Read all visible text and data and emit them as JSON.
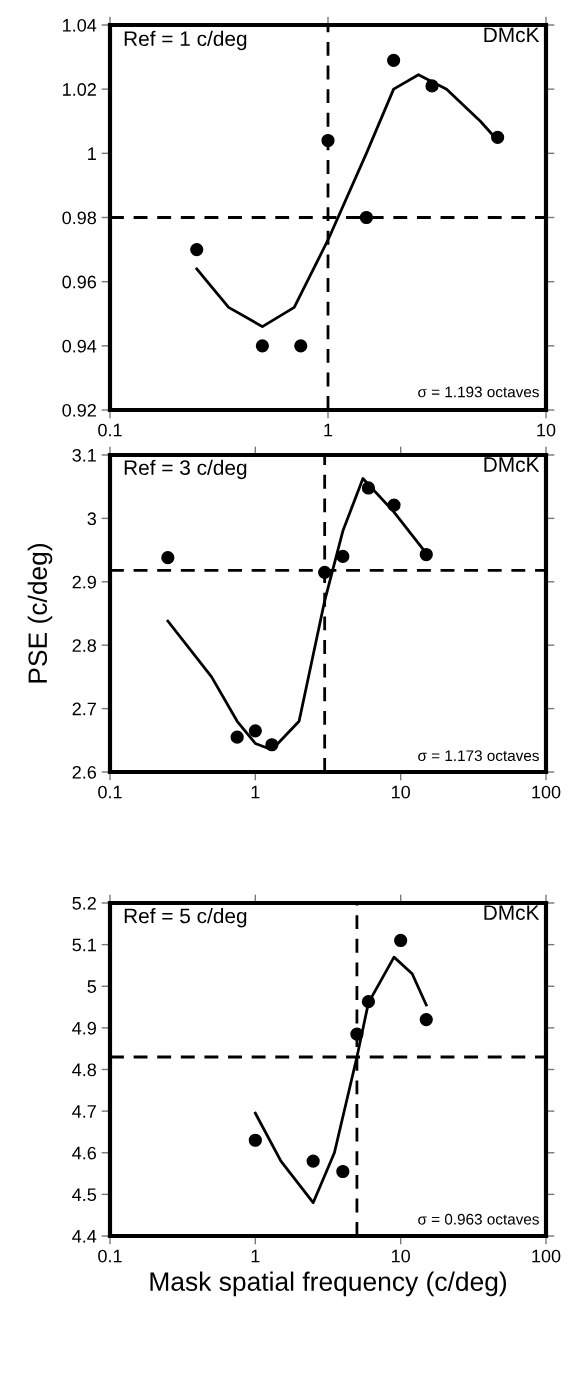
{
  "chart_data": [
    {
      "type": "scatter",
      "annotations": [
        "Ref = 1 c/deg",
        "DMcK",
        "σ = 1.193 octaves"
      ],
      "log": "x",
      "xlim": [
        0.1,
        10
      ],
      "xticks": [
        0.1,
        1,
        10
      ],
      "ylim": [
        0.92,
        1.04
      ],
      "yticks": [
        0.92,
        0.94,
        0.96,
        0.98,
        1,
        1.02,
        1.04
      ],
      "grid": false,
      "legend": false,
      "marker": "circle",
      "ref_lines": [
        {
          "axis": "x",
          "value": 1,
          "color": "#000000",
          "line_style": "dashed"
        },
        {
          "axis": "y",
          "value": 0.98,
          "color": "#000000",
          "line_style": "dashed"
        }
      ],
      "series": [
        {
          "color": "#000000",
          "x": [
            0.25,
            0.5,
            0.75,
            1,
            1.5,
            2,
            3,
            6
          ],
          "values": [
            0.97,
            0.94,
            0.94,
            1.004,
            0.98,
            1.029,
            1.021,
            1.005
          ]
        },
        {
          "type": "line",
          "color": "#000000",
          "line_style": "solid",
          "marker": "none",
          "x": [
            0.25,
            0.35,
            0.5,
            0.7,
            1,
            1.5,
            2,
            2.6,
            3.5,
            5,
            6
          ],
          "values": [
            0.964,
            0.952,
            0.946,
            0.952,
            0.973,
            1.0,
            1.02,
            1.0245,
            1.02,
            1.01,
            1.004
          ]
        }
      ]
    },
    {
      "type": "scatter",
      "annotations": [
        "Ref = 3 c/deg",
        "DMcK",
        "σ = 1.173 octaves"
      ],
      "ylabel": "PSE (c/deg)",
      "log": "x",
      "xlim": [
        0.1,
        100
      ],
      "xticks": [
        0.1,
        1,
        10,
        100
      ],
      "ylim": [
        2.6,
        3.1
      ],
      "yticks": [
        2.6,
        2.7,
        2.8,
        2.9,
        3,
        3.1
      ],
      "grid": false,
      "legend": false,
      "marker": "circle",
      "ref_lines": [
        {
          "axis": "x",
          "value": 3,
          "color": "#000000",
          "line_style": "dashed"
        },
        {
          "axis": "y",
          "value": 2.918,
          "color": "#000000",
          "line_style": "dashed"
        }
      ],
      "series": [
        {
          "color": "#000000",
          "x": [
            0.25,
            0.75,
            1.0,
            1.3,
            3,
            4,
            6,
            9,
            15
          ],
          "values": [
            2.938,
            2.655,
            2.665,
            2.643,
            2.915,
            2.94,
            3.048,
            3.021,
            2.943
          ]
        },
        {
          "type": "line",
          "color": "#000000",
          "line_style": "solid",
          "marker": "none",
          "x": [
            0.25,
            0.5,
            0.75,
            1.0,
            1.3,
            2,
            3,
            4,
            5.5,
            9,
            15
          ],
          "values": [
            2.838,
            2.75,
            2.68,
            2.645,
            2.635,
            2.68,
            2.87,
            2.98,
            3.063,
            3.01,
            2.945
          ]
        }
      ]
    },
    {
      "type": "scatter",
      "annotations": [
        "Ref = 5 c/deg",
        "DMcK",
        "σ = 0.963 octaves"
      ],
      "xlabel": "Mask spatial frequency (c/deg)",
      "log": "x",
      "xlim": [
        0.1,
        100
      ],
      "xticks": [
        0.1,
        1,
        10,
        100
      ],
      "ylim": [
        4.4,
        5.2
      ],
      "yticks": [
        4.4,
        4.5,
        4.6,
        4.7,
        4.8,
        4.9,
        5,
        5.1,
        5.2
      ],
      "grid": false,
      "legend": false,
      "marker": "circle",
      "ref_lines": [
        {
          "axis": "x",
          "value": 5,
          "color": "#000000",
          "line_style": "dashed"
        },
        {
          "axis": "y",
          "value": 4.83,
          "color": "#000000",
          "line_style": "dashed"
        }
      ],
      "series": [
        {
          "color": "#000000",
          "x": [
            1,
            2.5,
            4,
            5,
            6,
            10,
            15
          ],
          "values": [
            4.63,
            4.58,
            4.555,
            4.885,
            4.963,
            5.11,
            4.92
          ]
        },
        {
          "type": "line",
          "color": "#000000",
          "line_style": "solid",
          "marker": "none",
          "x": [
            1,
            1.5,
            2.5,
            3.5,
            5,
            6,
            9,
            12,
            15
          ],
          "values": [
            4.695,
            4.58,
            4.48,
            4.6,
            4.83,
            4.96,
            5.07,
            5.03,
            4.955
          ]
        }
      ]
    }
  ]
}
